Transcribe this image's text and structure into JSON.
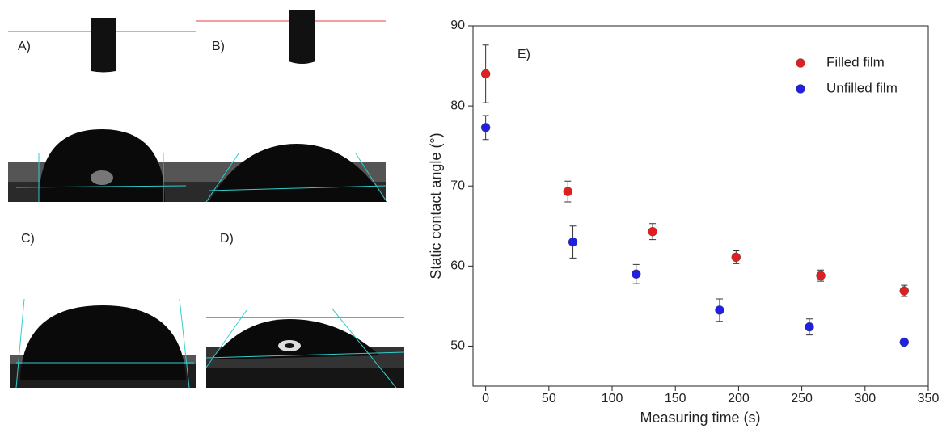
{
  "panel_labels": [
    "A)",
    "B)",
    "C)",
    "D)"
  ],
  "chart_data": {
    "type": "scatter",
    "annotation": "E)",
    "xlabel": "Measuring time (s)",
    "ylabel": "Static contact angle (°)",
    "xlim": [
      -10,
      350
    ],
    "ylim": [
      45,
      90
    ],
    "xticks": [
      0,
      50,
      100,
      150,
      200,
      250,
      300,
      350
    ],
    "yticks": [
      50,
      60,
      70,
      80,
      90
    ],
    "legend": "upper right",
    "series": [
      {
        "name": "Filled film",
        "color": "#e02020",
        "x": [
          0,
          65,
          132,
          198,
          265,
          331
        ],
        "y": [
          84,
          69.3,
          64.3,
          61.1,
          58.8,
          56.9
        ],
        "errors": [
          3.6,
          1.3,
          1,
          0.8,
          0.7,
          0.7
        ]
      },
      {
        "name": "Unfilled film",
        "color": "#2020e0",
        "x": [
          0,
          69,
          119,
          185,
          256,
          331
        ],
        "y": [
          77.3,
          63,
          59,
          54.5,
          52.4,
          50.5
        ],
        "errors": [
          1.5,
          2,
          1.2,
          1.4,
          1,
          0.2
        ]
      }
    ]
  }
}
